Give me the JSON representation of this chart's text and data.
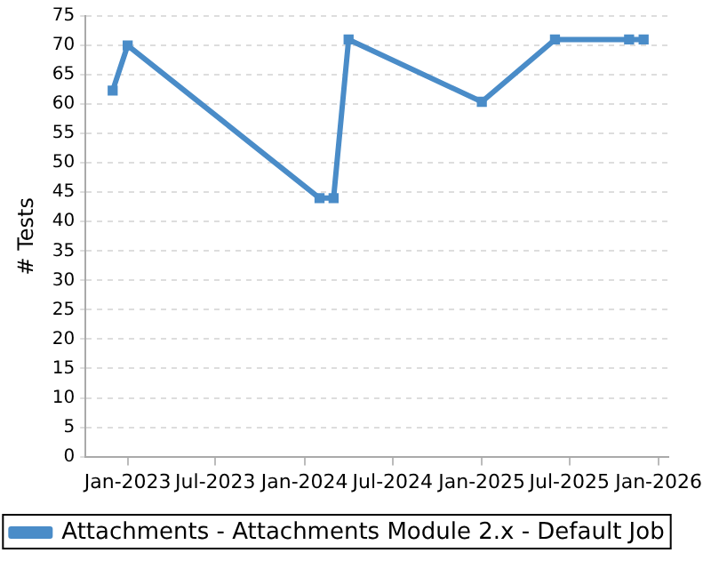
{
  "chart_data": {
    "type": "line",
    "ylabel": "# Tests",
    "x": [
      "2022-12-01",
      "2023-01-01",
      "2024-02-01",
      "2024-03-01",
      "2024-04-01",
      "2025-01-01",
      "2025-06-01",
      "2025-11-01",
      "2025-12-01"
    ],
    "series": [
      {
        "name": "Attachments - Attachments Module 2.x - Default Job",
        "color": "#4a8cc8",
        "values": [
          62.3,
          70,
          44,
          44,
          71,
          60.4,
          71,
          71,
          71
        ]
      }
    ],
    "xlim": [
      "2022-10-06",
      "2026-01-21"
    ],
    "xticks": [
      {
        "value": "2023-01-01",
        "label": "Jan-2023"
      },
      {
        "value": "2023-07-01",
        "label": "Jul-2023"
      },
      {
        "value": "2024-01-01",
        "label": "Jan-2024"
      },
      {
        "value": "2024-07-01",
        "label": "Jul-2024"
      },
      {
        "value": "2025-01-01",
        "label": "Jan-2025"
      },
      {
        "value": "2025-07-01",
        "label": "Jul-2025"
      },
      {
        "value": "2026-01-01",
        "label": "Jan-2026"
      }
    ],
    "ylim": [
      0,
      75
    ],
    "yticks": [
      0,
      5,
      10,
      15,
      20,
      25,
      30,
      35,
      40,
      45,
      50,
      55,
      60,
      65,
      70,
      75
    ],
    "grid": "y",
    "legend": "bottom",
    "marker": "square",
    "line_style": "solid"
  }
}
